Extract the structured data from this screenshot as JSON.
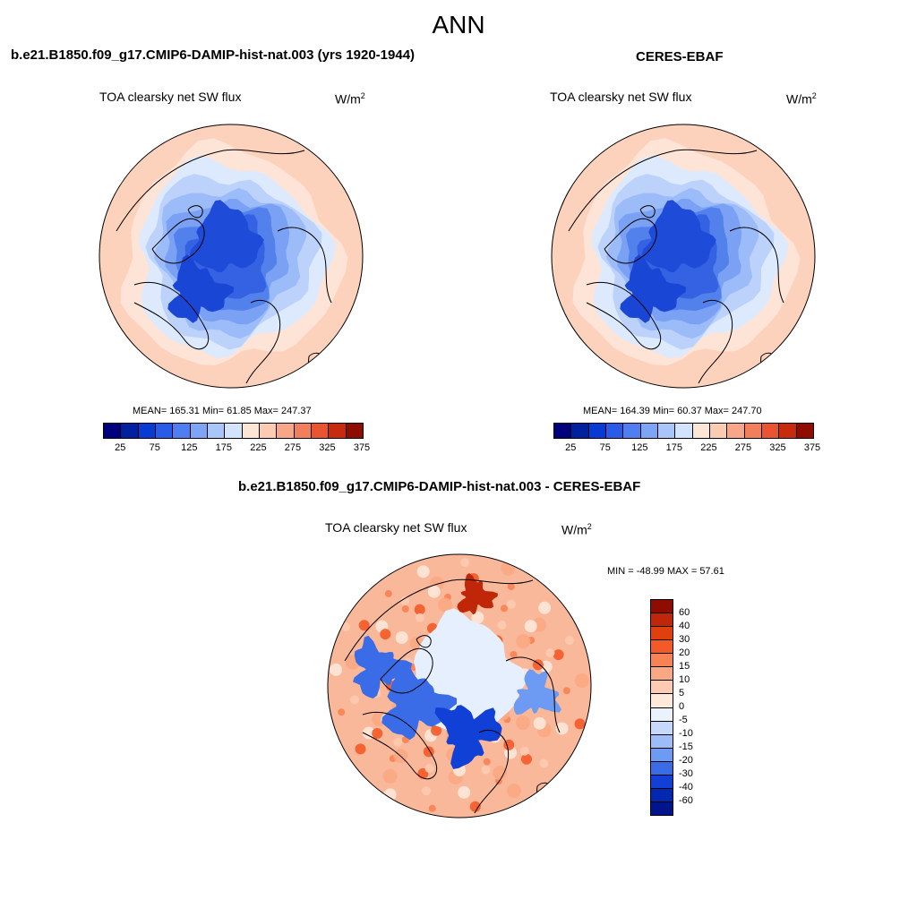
{
  "figure": {
    "title": "ANN"
  },
  "panels": {
    "model": {
      "title": "b.e21.B1850.f09_g17.CMIP6-DAMIP-hist-nat.003 (yrs 1920-1944)",
      "variable": "TOA clearsky net SW flux",
      "unit_base": "W/m",
      "unit_exp": "2",
      "stats": "MEAN= 165.31  Min=  61.85  Max= 247.37"
    },
    "obs": {
      "title": "CERES-EBAF",
      "variable": "TOA clearsky net SW flux",
      "unit_base": "W/m",
      "unit_exp": "2",
      "stats": "MEAN= 164.39  Min=  60.37  Max= 247.70"
    },
    "diff": {
      "title": "b.e21.B1850.f09_g17.CMIP6-DAMIP-hist-nat.003 - CERES-EBAF",
      "variable": "TOA clearsky net SW flux",
      "unit_base": "W/m",
      "unit_exp": "2",
      "stats": "MIN = -48.99 MAX =  57.61"
    }
  },
  "colorbars": {
    "absolute": {
      "colors": [
        "#00007f",
        "#0020a0",
        "#0a3ad4",
        "#2a5ae8",
        "#4e7ef2",
        "#7ea4f6",
        "#a9c6fa",
        "#d2e3fd",
        "#fde6d6",
        "#fbcbb2",
        "#f7a788",
        "#f27e5c",
        "#e85530",
        "#c82a10",
        "#8e0c00"
      ],
      "labels": [
        "25",
        "75",
        "125",
        "175",
        "225",
        "275",
        "325",
        "375"
      ]
    },
    "difference": {
      "colors": [
        "#8e0c00",
        "#c02608",
        "#e0400e",
        "#f45a28",
        "#f78253",
        "#faa883",
        "#fccbb1",
        "#fee8da",
        "#eaf2fd",
        "#c6d9fb",
        "#9dbdf8",
        "#6d9af2",
        "#3b6ce8",
        "#1040d6",
        "#0028b0",
        "#00148c"
      ],
      "labels": [
        "60",
        "40",
        "30",
        "20",
        "15",
        "10",
        "5",
        "0",
        "-5",
        "-10",
        "-15",
        "-20",
        "-30",
        "-40",
        "-60"
      ]
    }
  },
  "maps": {
    "model": {
      "rings": [
        "#fcd2bc",
        "#fde4d6",
        "#dde9fd",
        "#bcd2fb",
        "#9bbcf8",
        "#7aa1f3",
        "#5381ec",
        "#3462e2"
      ],
      "center_spot": "#1e4bd8"
    },
    "obs": {
      "rings": [
        "#fcd2bc",
        "#fde4d6",
        "#dde9fd",
        "#bcd2fb",
        "#9bbcf8",
        "#7aa1f3",
        "#5381ec",
        "#3462e2"
      ],
      "center_spot": "#1e4bd8"
    },
    "diff": {
      "rings": [
        "#f9b89a",
        "#fde2d4",
        "#f7a789",
        "#fde9dd",
        "#e6effd"
      ],
      "center_spot": "#e6effd"
    }
  }
}
